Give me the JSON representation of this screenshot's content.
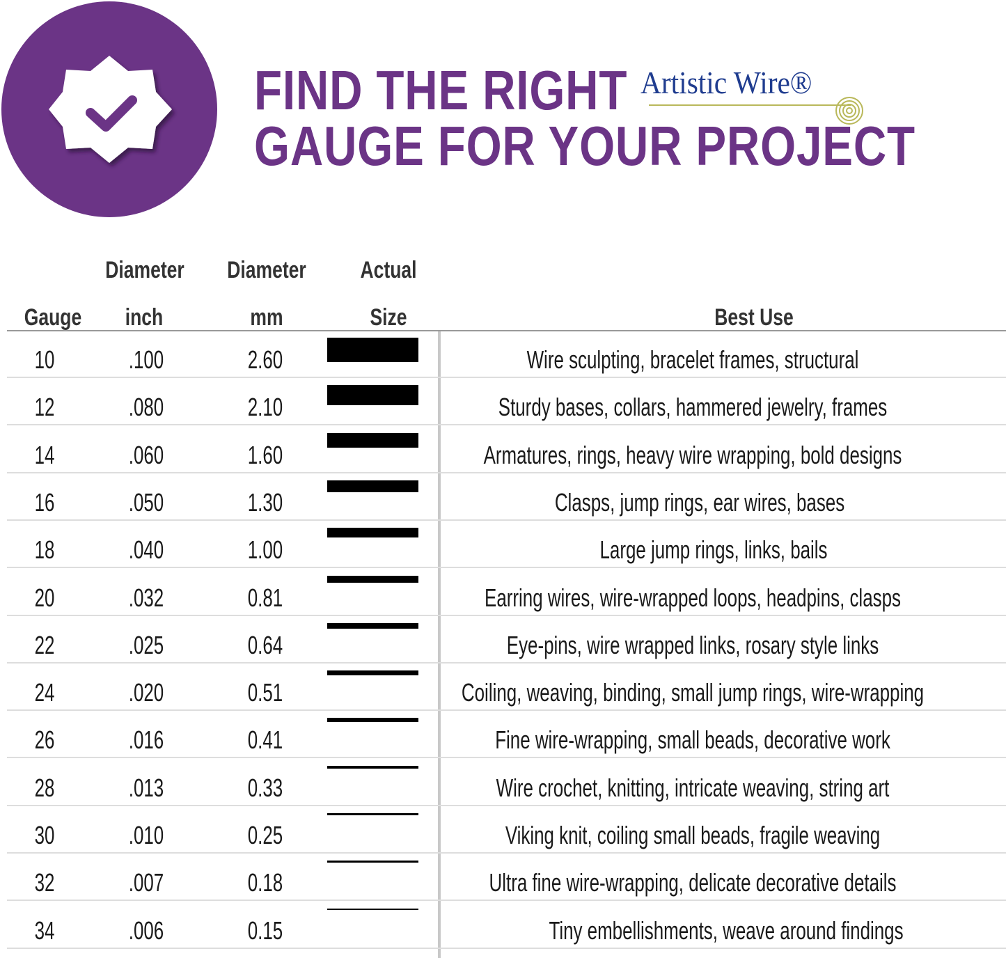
{
  "header": {
    "title_line1": "FIND THE RIGHT",
    "title_line2": "GAUGE FOR YOUR PROJECT",
    "brand_logo": "Artistic Wire®",
    "badge_icon": "check-badge-icon",
    "accent_color": "#6b3486",
    "logo_color": "#1f3c8f"
  },
  "table": {
    "columns": {
      "gauge": "Gauge",
      "inch_top": "Diameter",
      "inch_bottom": "inch",
      "mm_top": "Diameter",
      "mm_bottom": "mm",
      "size_top": "Actual",
      "size_bottom": "Size",
      "use": "Best Use"
    },
    "rows": [
      {
        "gauge": "10",
        "inch": ".100",
        "mm": "2.60",
        "use": "Wire sculpting, bracelet frames, structural"
      },
      {
        "gauge": "12",
        "inch": ".080",
        "mm": "2.10",
        "use": "Sturdy bases, collars, hammered jewelry, frames"
      },
      {
        "gauge": "14",
        "inch": ".060",
        "mm": "1.60",
        "use": "Armatures, rings, heavy wire wrapping, bold designs"
      },
      {
        "gauge": "16",
        "inch": ".050",
        "mm": "1.30",
        "use": "Clasps, jump rings, ear wires, bases"
      },
      {
        "gauge": "18",
        "inch": ".040",
        "mm": "1.00",
        "use": "Large jump rings, links, bails"
      },
      {
        "gauge": "20",
        "inch": ".032",
        "mm": "0.81",
        "use": "Earring wires, wire-wrapped loops, headpins, clasps"
      },
      {
        "gauge": "22",
        "inch": ".025",
        "mm": "0.64",
        "use": "Eye-pins, wire wrapped links, rosary style links"
      },
      {
        "gauge": "24",
        "inch": ".020",
        "mm": "0.51",
        "use": "Coiling, weaving, binding, small jump rings, wire-wrapping"
      },
      {
        "gauge": "26",
        "inch": ".016",
        "mm": "0.41",
        "use": "Fine wire-wrapping, small beads, decorative work"
      },
      {
        "gauge": "28",
        "inch": ".013",
        "mm": "0.33",
        "use": "Wire crochet, knitting, intricate weaving, string art"
      },
      {
        "gauge": "30",
        "inch": ".010",
        "mm": "0.25",
        "use": "Viking knit, coiling small beads, fragile weaving"
      },
      {
        "gauge": "32",
        "inch": ".007",
        "mm": "0.18",
        "use": "Ultra fine wire-wrapping, delicate decorative details"
      },
      {
        "gauge": "34",
        "inch": ".006",
        "mm": "0.15",
        "use": "Tiny embellishments, weave around findings"
      }
    ]
  }
}
